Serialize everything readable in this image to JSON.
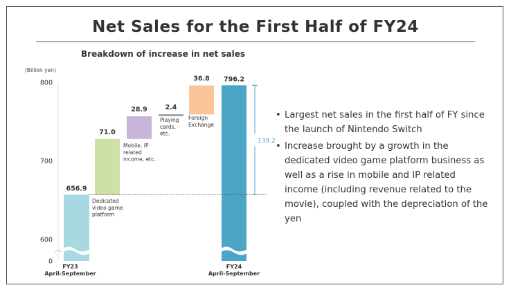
{
  "title": "Net Sales for the First Half of FY24",
  "subtitle": "Breakdown of increase in net sales",
  "bullets": [
    "Largest net sales in the first half of FY since the launch of Nintendo Switch",
    "Increase brought by a growth in the dedicated video game platform business as well as a rise in mobile and IP related income (including revenue related to the movie), coupled with the depreciation of the yen"
  ],
  "chart_data": {
    "type": "bar",
    "subtype": "waterfall",
    "unit_label": "(Billion yen)",
    "y_ticks": [
      0,
      600,
      700,
      800
    ],
    "ylim": [
      600,
      800
    ],
    "axis_break": true,
    "start": {
      "label": [
        "FY23",
        "April-September"
      ],
      "value": 656.9,
      "value_label": "656.9",
      "color": "#a8d8e2"
    },
    "increments": [
      {
        "label": [
          "Dedicated",
          "video game",
          "platform"
        ],
        "value": 71.0,
        "value_label": "71.0",
        "color": "#cfe0a6"
      },
      {
        "label": [
          "Mobile, IP",
          "related",
          "income, etc."
        ],
        "value": 28.9,
        "value_label": "28.9",
        "color": "#c7b5d9"
      },
      {
        "label": [
          "Playing",
          "cards,",
          "etc."
        ],
        "value": 2.4,
        "value_label": "2.4",
        "color": "#a6a6a6"
      },
      {
        "label": [
          "Foreign",
          "Exchange"
        ],
        "value": 36.8,
        "value_label": "36.8",
        "color": "#f9c49a"
      }
    ],
    "end": {
      "label": [
        "FY24",
        "April-September"
      ],
      "value": 796.2,
      "value_label": "796.2",
      "color": "#4aa6c4"
    },
    "difference": {
      "value": 139.2,
      "value_label": "139.2",
      "color": "#4aa6c4"
    }
  }
}
